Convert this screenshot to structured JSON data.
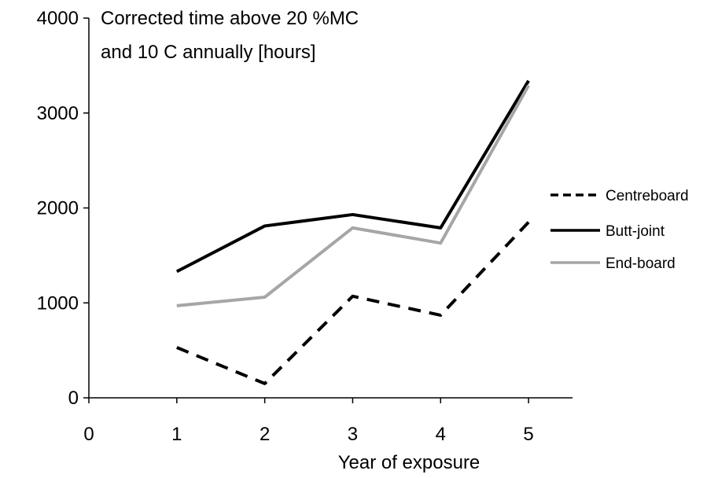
{
  "chart_data": {
    "type": "line",
    "title": "Corrected time above 20 %MC\nand 10  C annually [hours]",
    "title_lines": [
      "Corrected time above 20 %MC",
      "and 10  C annually [hours]"
    ],
    "xlabel": "Year of exposure",
    "ylabel": "",
    "xlim": [
      0,
      5.5
    ],
    "ylim": [
      0,
      4000
    ],
    "x_ticks": [
      0,
      1,
      2,
      3,
      4,
      5
    ],
    "x_tick_labels": [
      "0",
      "1",
      "2",
      "3",
      "4",
      "5"
    ],
    "y_ticks": [
      0,
      1000,
      2000,
      3000,
      4000
    ],
    "y_tick_labels": [
      "0",
      "1000",
      "2000",
      "3000",
      "4000"
    ],
    "grid": false,
    "legend_position": "right",
    "x": [
      1,
      2,
      3,
      4,
      5
    ],
    "series": [
      {
        "name": "Centreboard",
        "values": [
          530,
          150,
          1070,
          870,
          1850
        ],
        "color": "#000000",
        "dash": "dashed"
      },
      {
        "name": "Butt-joint",
        "values": [
          1330,
          1810,
          1930,
          1790,
          3340
        ],
        "color": "#000000",
        "dash": "solid"
      },
      {
        "name": "End-board",
        "values": [
          970,
          1060,
          1790,
          1630,
          3290
        ],
        "color": "#a6a6a6",
        "dash": "solid"
      }
    ]
  }
}
